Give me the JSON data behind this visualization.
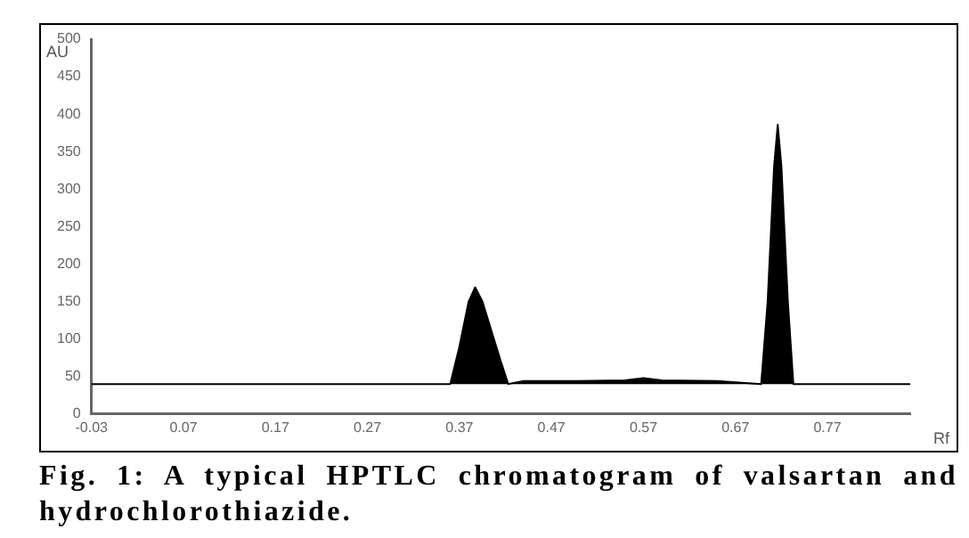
{
  "chart_data": {
    "type": "area",
    "ylabel": "AU",
    "xlabel": "Rf",
    "annotations": [
      "Fig. 1: A typical HPTLC chromatogram of valsartan and hydrochlorothiazide."
    ],
    "series": [
      {
        "color": "#000000",
        "x": [
          -0.03,
          0.36,
          0.37,
          0.38,
          0.387,
          0.395,
          0.405,
          0.415,
          0.423,
          0.44,
          0.5,
          0.55,
          0.57,
          0.59,
          0.65,
          0.698,
          0.705,
          0.712,
          0.716,
          0.72,
          0.727,
          0.733,
          0.86
        ],
        "values": [
          40,
          40,
          90,
          150,
          169,
          150,
          110,
          70,
          40,
          44,
          44,
          45,
          48,
          45,
          44,
          40,
          150,
          330,
          386,
          330,
          150,
          40,
          40
        ]
      }
    ],
    "xlim": [
      -0.03,
      0.86
    ],
    "xticks": [
      -0.03,
      0.07,
      0.17,
      0.27,
      0.37,
      0.47,
      0.57,
      0.67,
      0.77
    ],
    "ylim": [
      0,
      500
    ],
    "yticks": [
      0,
      50,
      100,
      150,
      200,
      250,
      300,
      350,
      400,
      450,
      500
    ],
    "grid": false,
    "legend": false
  }
}
